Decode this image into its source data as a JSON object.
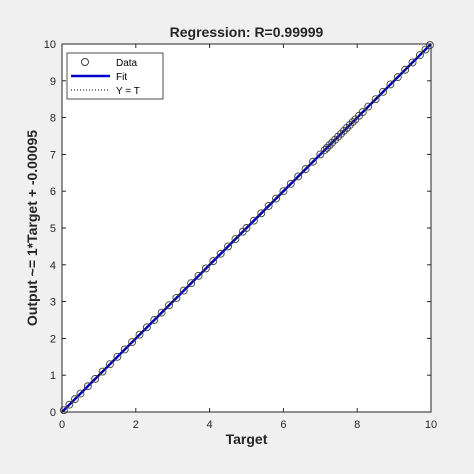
{
  "chart_data": {
    "type": "scatter",
    "title": "Regression: R=0.99999",
    "xlabel": "Target",
    "ylabel": "Output ~= 1*Target + -0.00095",
    "xlim": [
      0,
      10
    ],
    "ylim": [
      0,
      10
    ],
    "xticks": [
      0,
      2,
      4,
      6,
      8,
      10
    ],
    "yticks": [
      0,
      1,
      2,
      3,
      4,
      5,
      6,
      7,
      8,
      9,
      10
    ],
    "grid": false,
    "legend_position": "top-left",
    "legend": [
      {
        "label": "Data",
        "marker": "circle"
      },
      {
        "label": "Fit",
        "marker": "line"
      },
      {
        "label": "Y = T",
        "marker": "dotted-line"
      }
    ],
    "fit": {
      "slope": 1,
      "intercept": -0.00095
    },
    "x": [
      0.05,
      0.2,
      0.35,
      0.5,
      0.7,
      0.9,
      1.1,
      1.3,
      1.5,
      1.7,
      1.9,
      2.1,
      2.3,
      2.5,
      2.7,
      2.9,
      3.1,
      3.3,
      3.5,
      3.7,
      3.9,
      4.1,
      4.3,
      4.5,
      4.7,
      4.9,
      5.0,
      5.2,
      5.4,
      5.6,
      5.8,
      6.0,
      6.2,
      6.4,
      6.6,
      6.8,
      7.0,
      7.12,
      7.18,
      7.25,
      7.32,
      7.4,
      7.48,
      7.56,
      7.64,
      7.72,
      7.8,
      7.88,
      7.95,
      8.05,
      8.15,
      8.3,
      8.5,
      8.7,
      8.9,
      9.1,
      9.3,
      9.5,
      9.7,
      9.85,
      9.97
    ],
    "y": [
      0.05,
      0.2,
      0.35,
      0.5,
      0.7,
      0.9,
      1.1,
      1.3,
      1.5,
      1.7,
      1.9,
      2.1,
      2.3,
      2.5,
      2.7,
      2.9,
      3.1,
      3.3,
      3.5,
      3.7,
      3.9,
      4.1,
      4.3,
      4.5,
      4.7,
      4.9,
      5.0,
      5.2,
      5.4,
      5.6,
      5.8,
      6.0,
      6.2,
      6.4,
      6.6,
      6.8,
      7.0,
      7.12,
      7.18,
      7.25,
      7.32,
      7.4,
      7.48,
      7.56,
      7.64,
      7.72,
      7.8,
      7.88,
      7.95,
      8.05,
      8.15,
      8.3,
      8.5,
      8.7,
      8.9,
      9.1,
      9.3,
      9.5,
      9.7,
      9.85,
      9.97
    ],
    "colors": {
      "data": "#404040",
      "fit": "#0000cc",
      "identity": "#000000",
      "background": "#f0f0f0",
      "axes": "#ffffff"
    }
  }
}
